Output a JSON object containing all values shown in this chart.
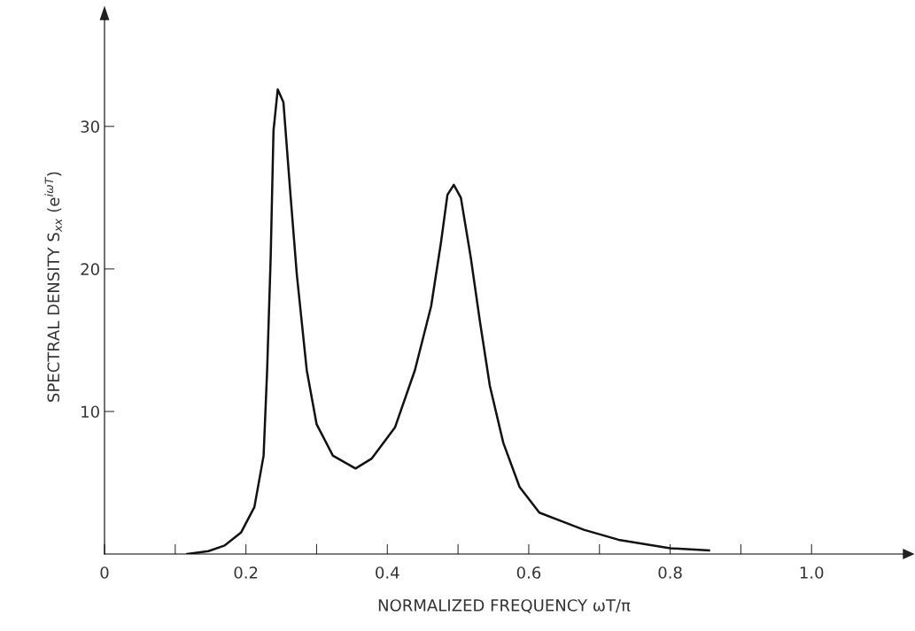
{
  "chart_data": {
    "type": "line",
    "xlabel": "NORMALIZED FREQUENCY ωT/π",
    "ylabel": "SPECTRAL DENSITY S$_{xx}$ (e$^{iωT}$)",
    "x": [
      0.117,
      0.147,
      0.17,
      0.193,
      0.212,
      0.225,
      0.23,
      0.235,
      0.239,
      0.245,
      0.253,
      0.263,
      0.272,
      0.286,
      0.3,
      0.323,
      0.355,
      0.378,
      0.411,
      0.439,
      0.462,
      0.476,
      0.485,
      0.494,
      0.504,
      0.518,
      0.531,
      0.545,
      0.564,
      0.587,
      0.615,
      0.652,
      0.678,
      0.727,
      0.8,
      0.855
    ],
    "series": [
      {
        "color": "#111111",
        "values": [
          0,
          0.2,
          0.6,
          1.5,
          3.3,
          6.9,
          12.9,
          20.8,
          29.7,
          32.6,
          31.7,
          25.2,
          19.6,
          12.9,
          9.1,
          6.9,
          6.0,
          6.7,
          8.9,
          12.9,
          17.4,
          21.9,
          25.2,
          25.9,
          25.0,
          20.8,
          16.3,
          11.8,
          7.8,
          4.7,
          2.9,
          2.2,
          1.7,
          1.0,
          0.4,
          0.25
        ]
      }
    ],
    "xlim": [
      0,
      1.13
    ],
    "ylim": [
      0,
      37.5
    ],
    "xticks": [
      {
        "value": 0,
        "label": "0"
      },
      {
        "value": 0.1,
        "label": null
      },
      {
        "value": 0.2,
        "label": "0.2"
      },
      {
        "value": 0.3,
        "label": null
      },
      {
        "value": 0.4,
        "label": "0.4"
      },
      {
        "value": 0.5,
        "label": null
      },
      {
        "value": 0.6,
        "label": "0.6"
      },
      {
        "value": 0.7,
        "label": null
      },
      {
        "value": 0.8,
        "label": "0.8"
      },
      {
        "value": 0.9,
        "label": null
      },
      {
        "value": 1.0,
        "label": "1.0"
      }
    ],
    "yticks": [
      10,
      20,
      30
    ],
    "grid": false,
    "legend": false,
    "marker": "none",
    "line_style": "solid"
  }
}
